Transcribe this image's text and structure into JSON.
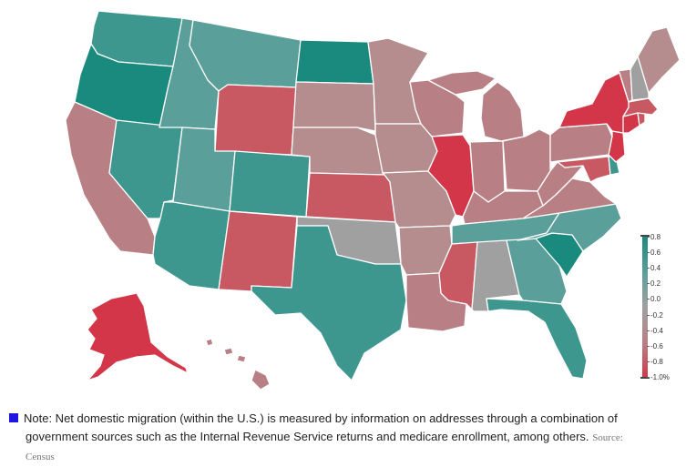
{
  "map": {
    "colors": {
      "teal_dark": "#1a8a7f",
      "teal_mid": "#3d978e",
      "teal_light": "#5a9f99",
      "gray": "#a0a0a0",
      "pink_light": "#b58d8f",
      "pink_mid": "#b87f85",
      "red_mid": "#c85962",
      "red_dark": "#d33648"
    },
    "states": [
      {
        "id": "WA",
        "fill": "teal_mid"
      },
      {
        "id": "OR",
        "fill": "teal_dark"
      },
      {
        "id": "CA",
        "fill": "pink_mid"
      },
      {
        "id": "NV",
        "fill": "teal_mid"
      },
      {
        "id": "ID",
        "fill": "teal_light"
      },
      {
        "id": "MT",
        "fill": "teal_light"
      },
      {
        "id": "WY",
        "fill": "red_mid"
      },
      {
        "id": "UT",
        "fill": "teal_light"
      },
      {
        "id": "AZ",
        "fill": "teal_mid"
      },
      {
        "id": "CO",
        "fill": "teal_mid"
      },
      {
        "id": "NM",
        "fill": "red_mid"
      },
      {
        "id": "ND",
        "fill": "teal_dark"
      },
      {
        "id": "SD",
        "fill": "pink_light"
      },
      {
        "id": "NE",
        "fill": "pink_light"
      },
      {
        "id": "KS",
        "fill": "red_mid"
      },
      {
        "id": "OK",
        "fill": "gray"
      },
      {
        "id": "TX",
        "fill": "teal_mid"
      },
      {
        "id": "MN",
        "fill": "pink_light"
      },
      {
        "id": "IA",
        "fill": "pink_light"
      },
      {
        "id": "MO",
        "fill": "pink_light"
      },
      {
        "id": "AR",
        "fill": "pink_light"
      },
      {
        "id": "LA",
        "fill": "pink_mid"
      },
      {
        "id": "WI",
        "fill": "pink_mid"
      },
      {
        "id": "IL",
        "fill": "red_dark"
      },
      {
        "id": "MI",
        "fill": "pink_mid"
      },
      {
        "id": "IN",
        "fill": "pink_mid"
      },
      {
        "id": "OH",
        "fill": "pink_mid"
      },
      {
        "id": "KY",
        "fill": "pink_mid"
      },
      {
        "id": "TN",
        "fill": "teal_light"
      },
      {
        "id": "MS",
        "fill": "red_mid"
      },
      {
        "id": "AL",
        "fill": "gray"
      },
      {
        "id": "GA",
        "fill": "teal_light"
      },
      {
        "id": "FL",
        "fill": "teal_mid"
      },
      {
        "id": "SC",
        "fill": "teal_dark"
      },
      {
        "id": "NC",
        "fill": "teal_light"
      },
      {
        "id": "VA",
        "fill": "pink_mid"
      },
      {
        "id": "WV",
        "fill": "pink_mid"
      },
      {
        "id": "PA",
        "fill": "pink_mid"
      },
      {
        "id": "NY",
        "fill": "red_dark"
      },
      {
        "id": "VT",
        "fill": "pink_mid"
      },
      {
        "id": "NH",
        "fill": "gray"
      },
      {
        "id": "ME",
        "fill": "pink_light"
      },
      {
        "id": "MA",
        "fill": "red_mid"
      },
      {
        "id": "RI",
        "fill": "red_mid"
      },
      {
        "id": "CT",
        "fill": "red_dark"
      },
      {
        "id": "NJ",
        "fill": "red_dark"
      },
      {
        "id": "DE",
        "fill": "teal_mid"
      },
      {
        "id": "MD",
        "fill": "red_mid"
      },
      {
        "id": "AK",
        "fill": "red_dark"
      },
      {
        "id": "HI",
        "fill": "pink_mid"
      }
    ]
  },
  "legend": {
    "ticks": [
      "0.8",
      "0.6",
      "0.4",
      "0.2",
      "0.0",
      "-0.2",
      "-0.4",
      "-0.6",
      "-0.8",
      "-1.0%"
    ]
  },
  "note": {
    "line1": "Note: Net domestic migration (within the U.S.) is measured by information on addresses through a combination of",
    "line2": "government sources such as the Internal Revenue Service returns and medicare enrollment, among others.",
    "source_label": "Source:",
    "source_value": "Census"
  }
}
